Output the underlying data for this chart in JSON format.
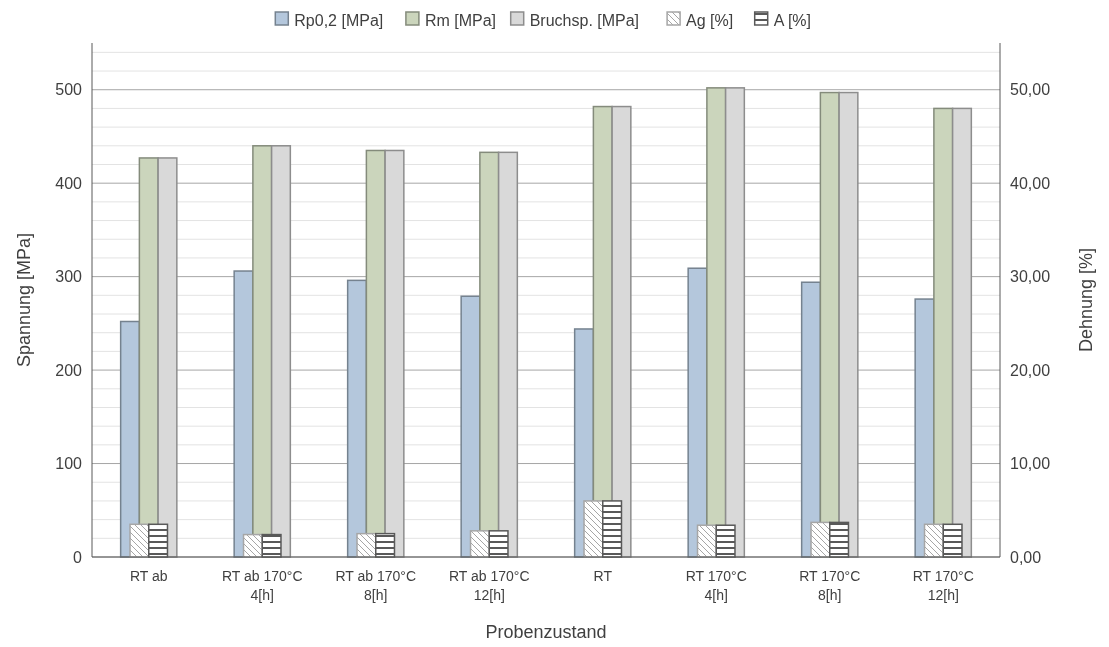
{
  "chart_data": {
    "type": "bar",
    "xlabel": "Probenzustand",
    "ylabel": "Spannung [MPa]",
    "y2label": "Dehnung [%]",
    "categories": [
      "RT ab",
      "RT ab 170°C\n4[h]",
      "RT ab 170°C\n8[h]",
      "RT ab 170°C\n12[h]",
      "RT",
      "RT 170°C\n4[h]",
      "RT 170°C\n8[h]",
      "RT 170°C\n12[h]"
    ],
    "series": [
      {
        "name": "Rp0,2 [MPa]",
        "color": "#b4c7dc",
        "values": [
          252,
          306,
          296,
          279,
          244,
          309,
          294,
          276
        ]
      },
      {
        "name": "Rm [MPa]",
        "color": "#cbd5bc",
        "values": [
          427,
          440,
          435,
          433,
          482,
          502,
          497,
          480
        ]
      },
      {
        "name": "Bruchsp. [MPa]",
        "color": "#d9d9d9",
        "values": [
          427,
          440,
          435,
          433,
          482,
          502,
          497,
          480
        ]
      },
      {
        "name": "Ag [%]",
        "color": "#a6a6a6",
        "axis": "y2",
        "values": [
          3.5,
          2.4,
          2.5,
          2.8,
          6.0,
          3.4,
          3.7,
          3.5
        ]
      },
      {
        "name": "A [%]",
        "color": "#595959",
        "axis": "y2",
        "values": [
          3.5,
          2.4,
          2.5,
          2.8,
          6.0,
          3.4,
          3.7,
          3.5
        ]
      }
    ],
    "ylim": [
      0,
      550
    ],
    "yticks": [
      0,
      {
        "value": 20,
        "label": null
      },
      {
        "value": 40,
        "label": null
      },
      {
        "value": 60,
        "label": null
      },
      {
        "value": 80,
        "label": null
      },
      100,
      {
        "value": 120,
        "label": null
      },
      {
        "value": 140,
        "label": null
      },
      {
        "value": 160,
        "label": null
      },
      {
        "value": 180,
        "label": null
      },
      200,
      {
        "value": 220,
        "label": null
      },
      {
        "value": 240,
        "label": null
      },
      {
        "value": 260,
        "label": null
      },
      {
        "value": 280,
        "label": null
      },
      300,
      {
        "value": 320,
        "label": null
      },
      {
        "value": 340,
        "label": null
      },
      {
        "value": 360,
        "label": null
      },
      {
        "value": 380,
        "label": null
      },
      400,
      {
        "value": 420,
        "label": null
      },
      {
        "value": 440,
        "label": null
      },
      {
        "value": 460,
        "label": null
      },
      {
        "value": 480,
        "label": null
      },
      500,
      {
        "value": 520,
        "label": null
      },
      {
        "value": 540,
        "label": null
      }
    ],
    "y2lim": [
      0,
      55
    ],
    "y2ticks": [
      {
        "value": 0,
        "label": "0,00"
      },
      {
        "value": 10,
        "label": "10,00"
      },
      {
        "value": 20,
        "label": "20,00"
      },
      {
        "value": 30,
        "label": "30,00"
      },
      {
        "value": 40,
        "label": "40,00"
      },
      {
        "value": 50,
        "label": "50,00"
      }
    ],
    "grid": "y",
    "legend": "top"
  }
}
